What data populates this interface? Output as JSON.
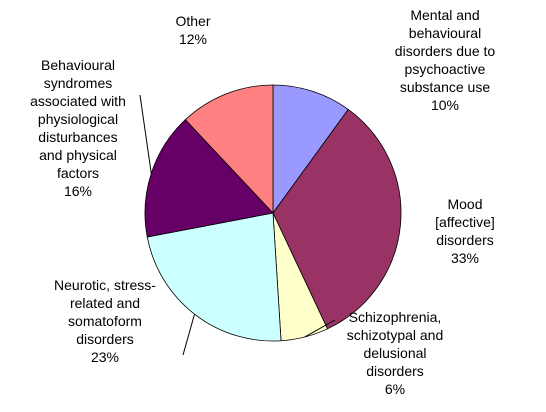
{
  "chart_data": {
    "type": "pie",
    "categories": [
      "Mental and\nbehavioural\ndisorders due to\npsychoactive\nsubstance use",
      "Mood [affective]\ndisorders",
      "Schizophrenia,\nschizotypal and\ndelusional\ndisorders",
      "Neurotic, stress-\nrelated and\nsomatoform\ndisorders",
      "Behavioural\nsyndromes\nassociated with\nphysiological\ndisturbances\nand physical\nfactors",
      "Other"
    ],
    "values": [
      10,
      33,
      6,
      23,
      16,
      12
    ],
    "value_labels": [
      "10%",
      "33%",
      "6%",
      "23%",
      "16%",
      "12%"
    ],
    "colors": [
      "#9999ff",
      "#993366",
      "#ffffcc",
      "#ccffff",
      "#660066",
      "#ff8080"
    ]
  }
}
